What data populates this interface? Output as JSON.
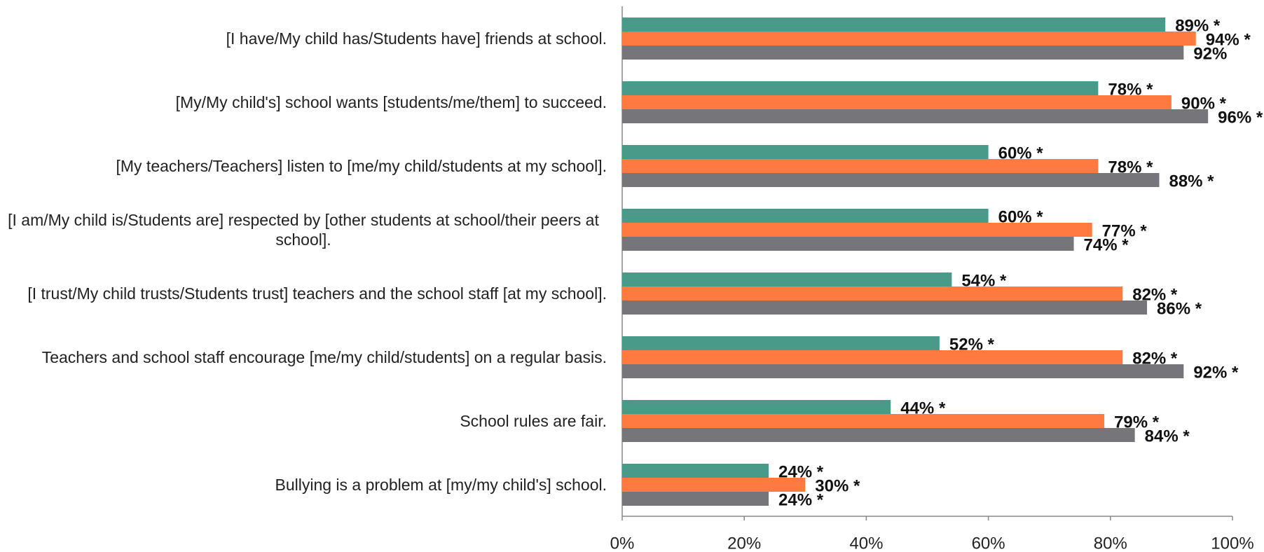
{
  "chart_data": {
    "type": "hbar",
    "categories": [
      "[I have/My child has/Students have] friends at school.",
      "[My/My child's] school wants [students/me/them] to succeed.",
      "[My teachers/Teachers] listen to [me/my child/students at my school].",
      "[I am/My child is/Students are] respected by [other students at school/their peers at school].",
      "[I trust/My child trusts/Students trust] teachers and the school staff [at my school].",
      "Teachers and school staff encourage [me/my child/students] on a regular basis.",
      "School rules are fair.",
      "Bullying is a problem at [my/my child's] school."
    ],
    "series": [
      {
        "color": "#4a9a8a",
        "values": [
          89,
          78,
          60,
          60,
          54,
          52,
          44,
          24
        ],
        "value_labels": [
          "89% *",
          "78% *",
          "60% *",
          "60% *",
          "54% *",
          "52% *",
          "44% *",
          "24% *"
        ]
      },
      {
        "color": "#ff7a40",
        "values": [
          94,
          90,
          78,
          77,
          82,
          82,
          79,
          30
        ],
        "value_labels": [
          "94% *",
          "90% *",
          "78% *",
          "77% *",
          "82% *",
          "82% *",
          "79% *",
          "30% *"
        ]
      },
      {
        "color": "#76767a",
        "values": [
          92,
          96,
          88,
          74,
          86,
          92,
          84,
          24
        ],
        "value_labels": [
          "92%",
          "96% *",
          "88% *",
          "74% *",
          "86% *",
          "92% *",
          "84% *",
          "24% *"
        ]
      }
    ],
    "xlim": [
      0,
      100
    ],
    "xticks": [
      {
        "value": 0,
        "label": "0%"
      },
      {
        "value": 20,
        "label": "20%"
      },
      {
        "value": 40,
        "label": "40%"
      },
      {
        "value": 60,
        "label": "60%"
      },
      {
        "value": 80,
        "label": "80%"
      },
      {
        "value": 100,
        "label": "100%"
      }
    ]
  }
}
